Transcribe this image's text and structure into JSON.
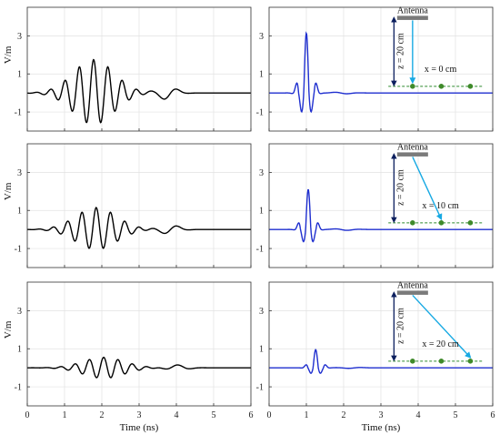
{
  "chart_data": {
    "type": "line",
    "grid": true,
    "xlabel": "Time (ns)",
    "ylabel": "V/m",
    "xlim": [
      0,
      6
    ],
    "ylim": [
      -2,
      4.5
    ],
    "x_ticks": [
      "0",
      "1",
      "2",
      "3",
      "4",
      "5",
      "6"
    ],
    "y_ticks": [
      "-1",
      "1",
      "3"
    ],
    "panels": [
      {
        "id": "row1-left",
        "color": "#000000",
        "series_name": "",
        "signal": {
          "center": 1.78,
          "peak": 1.75,
          "min": -1.65,
          "freq": 2.6,
          "width": 0.55,
          "extra_tail": 0.35
        }
      },
      {
        "id": "row1-right",
        "color": "#1f2fcf",
        "series_name": "",
        "signal": {
          "center": 1.0,
          "peak": 3.15,
          "min": -1.55,
          "freq": 3.6,
          "width": 0.14,
          "extra_tail": 0.05
        },
        "inset": {
          "antenna_label": "Antenna",
          "z_label": "z = 20 cm",
          "x_label": "x = 0 cm",
          "target_index": 0
        }
      },
      {
        "id": "row2-left",
        "color": "#000000",
        "series_name": "",
        "signal": {
          "center": 1.85,
          "peak": 1.15,
          "min": -1.05,
          "freq": 2.6,
          "width": 0.55,
          "extra_tail": 0.25
        }
      },
      {
        "id": "row2-right",
        "color": "#1f2fcf",
        "series_name": "",
        "signal": {
          "center": 1.05,
          "peak": 2.1,
          "min": -1.0,
          "freq": 3.6,
          "width": 0.14,
          "extra_tail": 0.05
        },
        "inset": {
          "antenna_label": "Antenna",
          "z_label": "z = 20 cm",
          "x_label": "x = 10 cm",
          "target_index": 1
        }
      },
      {
        "id": "row3-left",
        "color": "#000000",
        "series_name": "",
        "signal": {
          "center": 2.05,
          "peak": 0.55,
          "min": -0.55,
          "freq": 2.6,
          "width": 0.55,
          "extra_tail": 0.15
        }
      },
      {
        "id": "row3-right",
        "color": "#1f2fcf",
        "series_name": "",
        "signal": {
          "center": 1.25,
          "peak": 0.95,
          "min": -0.45,
          "freq": 3.6,
          "width": 0.14,
          "extra_tail": 0.03
        },
        "inset": {
          "antenna_label": "Antenna",
          "z_label": "z = 20 cm",
          "x_label": "x = 20 cm",
          "target_index": 2
        }
      }
    ]
  }
}
